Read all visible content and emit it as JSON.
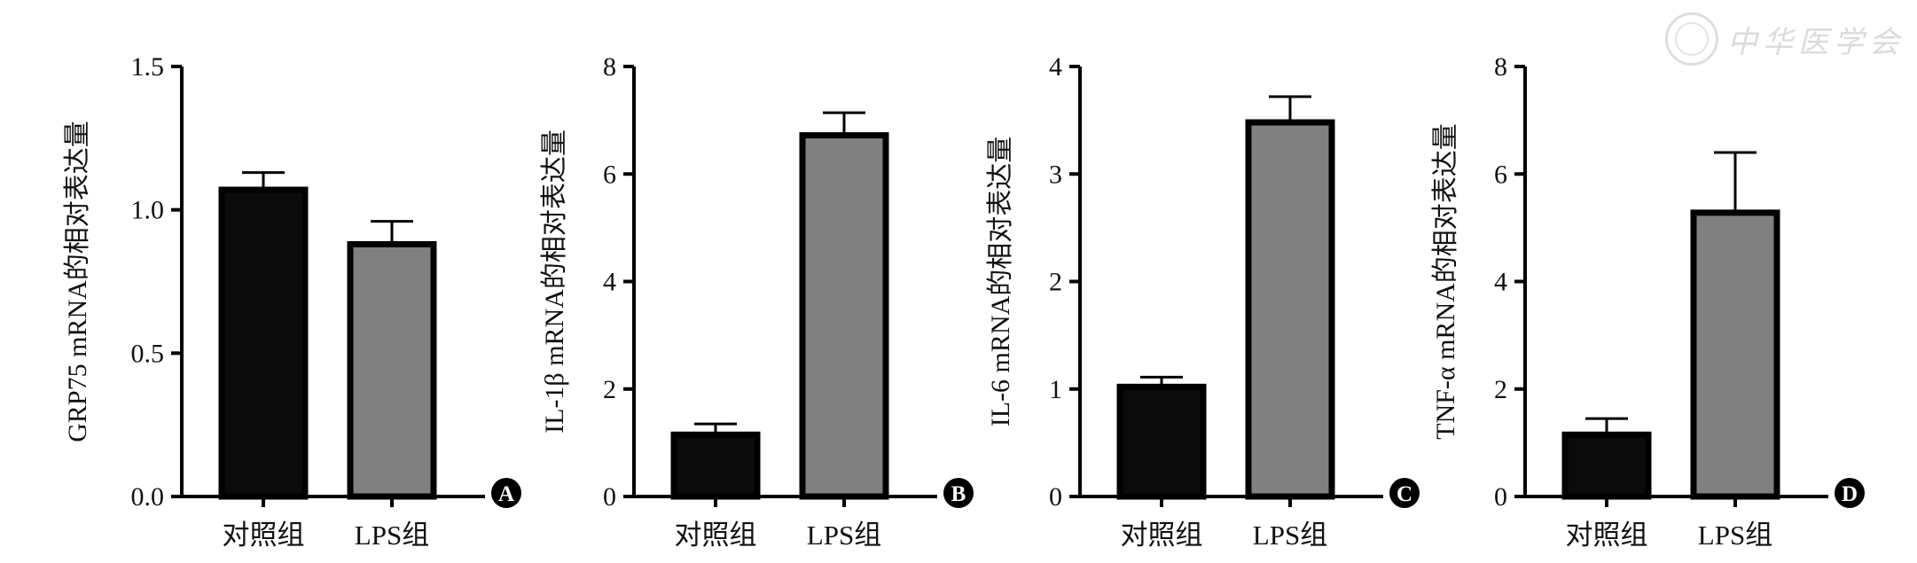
{
  "watermark": {
    "text": "中华医学会"
  },
  "chart_data": [
    {
      "type": "bar",
      "panel": "A",
      "categories": [
        "对照组",
        "LPS组"
      ],
      "values": [
        1.07,
        0.88
      ],
      "errors": [
        0.06,
        0.08
      ],
      "ylabel": "GRP75 mRNA的相对表达量",
      "ylim": [
        0,
        1.5
      ],
      "yticks": [
        "0.0",
        "0.5",
        "1.0",
        "1.5"
      ],
      "colors": [
        "#0b0b0b",
        "#808080"
      ]
    },
    {
      "type": "bar",
      "panel": "B",
      "categories": [
        "对照组",
        "LPS组"
      ],
      "values": [
        1.15,
        6.72
      ],
      "errors": [
        0.2,
        0.42
      ],
      "ylabel": "IL-1β mRNA的相对表达量",
      "ylim": [
        0,
        8
      ],
      "yticks": [
        "0",
        "2",
        "4",
        "6",
        "8"
      ],
      "colors": [
        "#0b0b0b",
        "#808080"
      ]
    },
    {
      "type": "bar",
      "panel": "C",
      "categories": [
        "对照组",
        "LPS组"
      ],
      "values": [
        1.02,
        3.48
      ],
      "errors": [
        0.09,
        0.24
      ],
      "ylabel": "IL-6 mRNA的相对表达量",
      "ylim": [
        0,
        4
      ],
      "yticks": [
        "0",
        "1",
        "2",
        "3",
        "4"
      ],
      "colors": [
        "#0b0b0b",
        "#808080"
      ]
    },
    {
      "type": "bar",
      "panel": "D",
      "categories": [
        "对照组",
        "LPS组"
      ],
      "values": [
        1.15,
        5.28
      ],
      "errors": [
        0.3,
        1.12
      ],
      "ylabel": "TNF-α mRNA的相对表达量",
      "ylim": [
        0,
        8
      ],
      "yticks": [
        "0",
        "2",
        "4",
        "6",
        "8"
      ],
      "colors": [
        "#0b0b0b",
        "#808080"
      ]
    }
  ]
}
